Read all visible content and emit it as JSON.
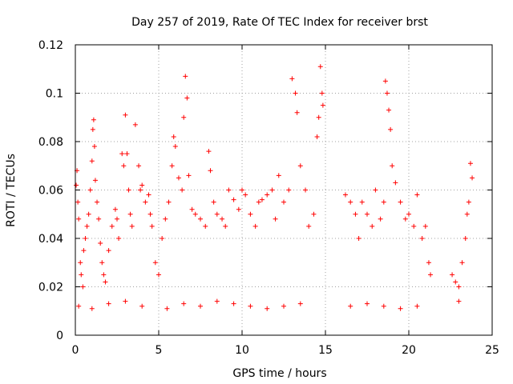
{
  "chart_data": {
    "type": "scatter",
    "title": "Day 257 of 2019, Rate Of TEC Index for receiver brst",
    "xlabel": "GPS time / hours",
    "ylabel": "ROTI / TECUs",
    "xlim": [
      0,
      25
    ],
    "ylim": [
      0,
      0.12
    ],
    "xticks": [
      0,
      5,
      10,
      15,
      20,
      25
    ],
    "xtick_labels": [
      "0",
      "5",
      "10",
      "15",
      "20",
      "25"
    ],
    "yticks": [
      0,
      0.02,
      0.04,
      0.06,
      0.08,
      0.1,
      0.12
    ],
    "ytick_labels": [
      "0",
      "0.02",
      "0.04",
      "0.06",
      "0.08",
      "0.1",
      "0.12"
    ],
    "grid": true,
    "marker": "plus",
    "color": "#ff0000",
    "series": [
      {
        "x": [
          0.05,
          0.1,
          0.15,
          0.2,
          0.3,
          0.35,
          0.45,
          0.5,
          0.6,
          0.7,
          0.8,
          0.9,
          1.0,
          1.05,
          1.1,
          1.15,
          1.2,
          1.3,
          1.4,
          1.5,
          1.6,
          1.7,
          1.8,
          2.0,
          2.2,
          2.4,
          2.5,
          2.6,
          2.8,
          2.9,
          3.0,
          3.1,
          3.2,
          3.3,
          3.4,
          3.6,
          3.8,
          3.9,
          4.0,
          4.2,
          4.4,
          4.5,
          4.6,
          4.8,
          5.0,
          5.2,
          5.4,
          5.6,
          5.8,
          5.9,
          6.0,
          6.2,
          6.4,
          6.5,
          6.6,
          6.7,
          6.8,
          7.0,
          7.2,
          7.5,
          7.8,
          8.0,
          8.1,
          8.3,
          8.5,
          8.8,
          9.0,
          9.2,
          9.5,
          9.8,
          10.0,
          10.2,
          10.5,
          10.8,
          11.0,
          11.2,
          11.5,
          11.8,
          12.0,
          12.2,
          12.5,
          12.8,
          13.0,
          13.2,
          13.3,
          13.5,
          13.8,
          14.0,
          14.3,
          14.5,
          14.6,
          14.7,
          14.8,
          14.85,
          16.2,
          16.5,
          16.8,
          17.0,
          17.2,
          17.5,
          17.8,
          18.0,
          18.3,
          18.5,
          18.6,
          18.7,
          18.8,
          18.9,
          19.0,
          19.2,
          19.5,
          19.8,
          20.0,
          20.3,
          20.5,
          20.8,
          21.0,
          21.2,
          21.3,
          22.6,
          22.8,
          23.0,
          23.2,
          23.4,
          23.5,
          23.6,
          23.7,
          23.8,
          0.2,
          1.0,
          2.0,
          3.0,
          4.0,
          5.5,
          6.5,
          7.5,
          8.5,
          9.5,
          10.5,
          11.5,
          12.5,
          13.5,
          16.5,
          17.5,
          18.5,
          19.5,
          20.5,
          23.0
        ],
        "y": [
          0.062,
          0.068,
          0.055,
          0.048,
          0.03,
          0.025,
          0.02,
          0.035,
          0.04,
          0.045,
          0.05,
          0.06,
          0.072,
          0.085,
          0.089,
          0.078,
          0.064,
          0.055,
          0.048,
          0.038,
          0.03,
          0.025,
          0.022,
          0.035,
          0.045,
          0.052,
          0.048,
          0.04,
          0.075,
          0.07,
          0.091,
          0.075,
          0.06,
          0.05,
          0.045,
          0.087,
          0.07,
          0.06,
          0.062,
          0.055,
          0.058,
          0.05,
          0.045,
          0.03,
          0.025,
          0.04,
          0.048,
          0.055,
          0.07,
          0.082,
          0.078,
          0.065,
          0.06,
          0.09,
          0.107,
          0.098,
          0.066,
          0.052,
          0.05,
          0.048,
          0.045,
          0.076,
          0.068,
          0.055,
          0.05,
          0.048,
          0.045,
          0.06,
          0.056,
          0.052,
          0.06,
          0.058,
          0.05,
          0.045,
          0.055,
          0.056,
          0.058,
          0.06,
          0.048,
          0.066,
          0.055,
          0.06,
          0.106,
          0.1,
          0.092,
          0.07,
          0.06,
          0.045,
          0.05,
          0.082,
          0.09,
          0.111,
          0.1,
          0.095,
          0.058,
          0.055,
          0.05,
          0.04,
          0.055,
          0.05,
          0.045,
          0.06,
          0.048,
          0.055,
          0.105,
          0.1,
          0.093,
          0.085,
          0.07,
          0.063,
          0.055,
          0.048,
          0.05,
          0.045,
          0.058,
          0.04,
          0.045,
          0.03,
          0.025,
          0.025,
          0.022,
          0.02,
          0.03,
          0.04,
          0.05,
          0.055,
          0.071,
          0.065,
          0.012,
          0.011,
          0.013,
          0.014,
          0.012,
          0.011,
          0.013,
          0.012,
          0.014,
          0.013,
          0.012,
          0.011,
          0.012,
          0.013,
          0.012,
          0.013,
          0.012,
          0.011,
          0.012,
          0.014
        ]
      }
    ]
  }
}
